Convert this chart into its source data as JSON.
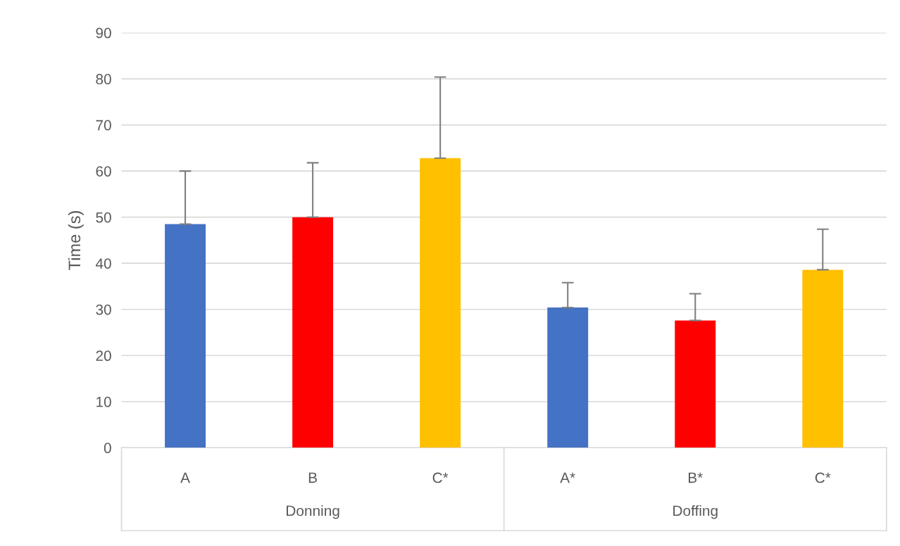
{
  "chart_data": {
    "type": "bar",
    "ylabel": "Time (s)",
    "categories": [
      "A",
      "B",
      "C*",
      "A*",
      "B*",
      "C*"
    ],
    "values": [
      48.5,
      50.0,
      62.8,
      30.4,
      27.6,
      38.6
    ],
    "colors": [
      "#4472c4",
      "#ff0000",
      "#ffc000",
      "#4472c4",
      "#ff0000",
      "#ffc000"
    ],
    "errors": [
      [
        48.5,
        60.0
      ],
      [
        50.0,
        61.8
      ],
      [
        62.8,
        80.4
      ],
      [
        30.4,
        35.8
      ],
      [
        27.6,
        33.4
      ],
      [
        38.6,
        47.4
      ]
    ],
    "annotations": [
      "Donning",
      "Doffing"
    ],
    "ylim": [
      0,
      90
    ],
    "yticks": [
      0,
      10,
      20,
      30,
      40,
      50,
      60,
      70,
      80,
      90
    ],
    "grid": "y"
  }
}
